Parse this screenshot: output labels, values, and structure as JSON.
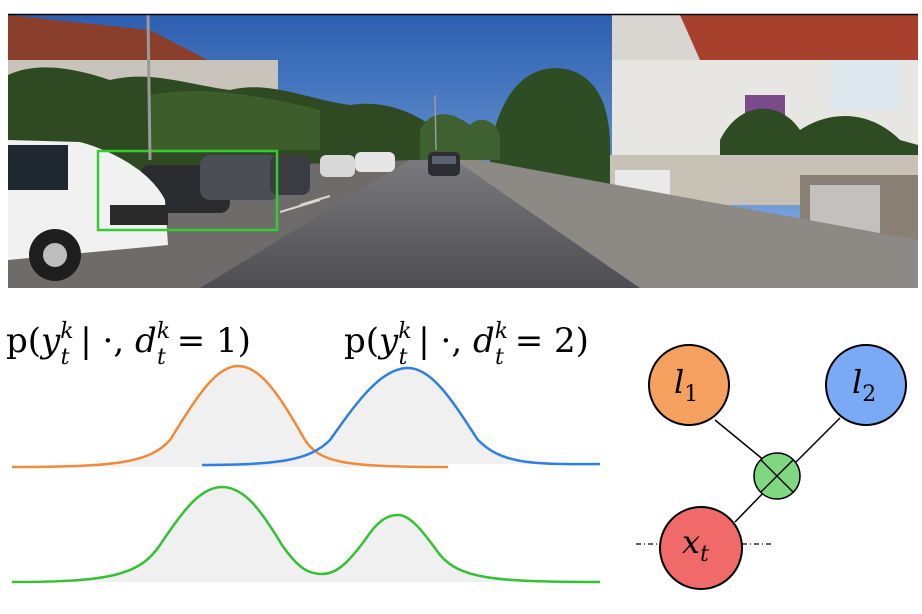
{
  "photo": {
    "description_marks": [
      "street-scene"
    ],
    "detection_box_color": "#33cc33"
  },
  "distributions": {
    "label_1": {
      "prefix": "p(",
      "y": "y",
      "sup": "k",
      "sub": "t",
      "mid": " | ·, ",
      "d": "d",
      "d_sup": "k",
      "d_sub": "t",
      "eq": " = 1)"
    },
    "label_2": {
      "prefix": "p(",
      "y": "y",
      "sup": "k",
      "sub": "t",
      "mid": " | ·, ",
      "d": "d",
      "d_sup": "k",
      "d_sub": "t",
      "eq": " = 2)"
    },
    "colors": {
      "component_1": "#f28a3a",
      "component_2": "#2f7fe0",
      "mixture": "#33c233",
      "fill": "#eeeeee"
    }
  },
  "graph": {
    "nodes": [
      {
        "id": "l1",
        "symbol": "l",
        "subscript": "1",
        "color": "#f5a05f"
      },
      {
        "id": "l2",
        "symbol": "l",
        "subscript": "2",
        "color": "#7aaaf5"
      },
      {
        "id": "factor",
        "symbol": "",
        "subscript": "",
        "color": "#7fd87f"
      },
      {
        "id": "xt",
        "symbol": "x",
        "subscript": "t",
        "color": "#f06a6a"
      }
    ]
  }
}
